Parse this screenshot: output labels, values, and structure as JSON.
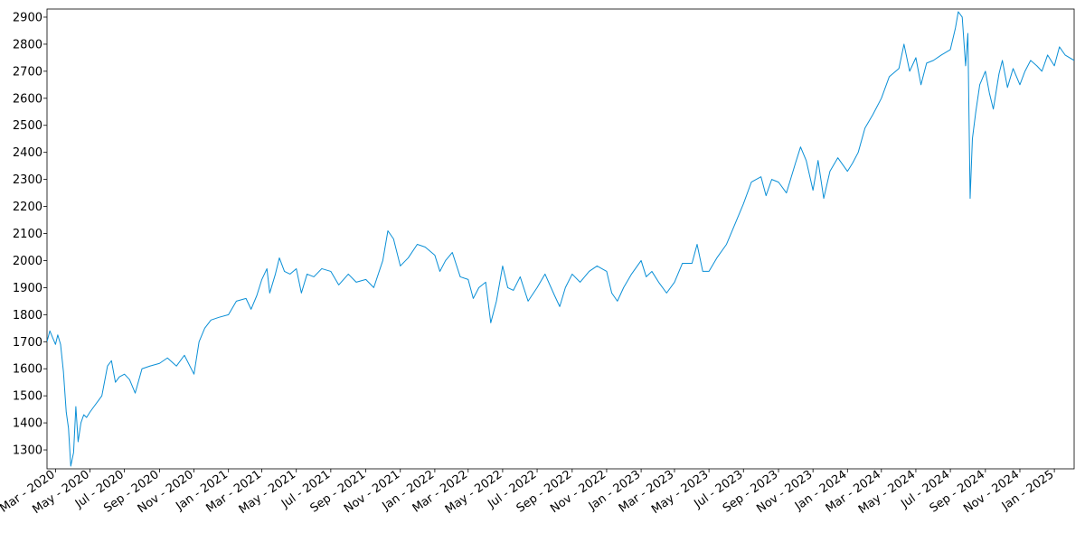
{
  "chart_data": {
    "type": "line",
    "title": "",
    "xlabel": "",
    "ylabel": "",
    "grid": false,
    "legend": "none",
    "line_color": "#0a8fd6",
    "xlim": [
      "2020-02-15",
      "2025-02-05"
    ],
    "ylim": [
      1230,
      2930
    ],
    "yticks": [
      1300,
      1400,
      1500,
      1600,
      1700,
      1800,
      1900,
      2000,
      2100,
      2200,
      2300,
      2400,
      2500,
      2600,
      2700,
      2800,
      2900
    ],
    "xticks": [
      {
        "date": "2020-03-01",
        "label": "Mar - 2020"
      },
      {
        "date": "2020-05-01",
        "label": "May - 2020"
      },
      {
        "date": "2020-07-01",
        "label": "Jul - 2020"
      },
      {
        "date": "2020-09-01",
        "label": "Sep - 2020"
      },
      {
        "date": "2020-11-01",
        "label": "Nov - 2020"
      },
      {
        "date": "2021-01-01",
        "label": "Jan - 2021"
      },
      {
        "date": "2021-03-01",
        "label": "Mar - 2021"
      },
      {
        "date": "2021-05-01",
        "label": "May - 2021"
      },
      {
        "date": "2021-07-01",
        "label": "Jul - 2021"
      },
      {
        "date": "2021-09-01",
        "label": "Sep - 2021"
      },
      {
        "date": "2021-11-01",
        "label": "Nov - 2021"
      },
      {
        "date": "2022-01-01",
        "label": "Jan - 2022"
      },
      {
        "date": "2022-03-01",
        "label": "Mar - 2022"
      },
      {
        "date": "2022-05-01",
        "label": "May - 2022"
      },
      {
        "date": "2022-07-01",
        "label": "Jul - 2022"
      },
      {
        "date": "2022-09-01",
        "label": "Sep - 2022"
      },
      {
        "date": "2022-11-01",
        "label": "Nov - 2022"
      },
      {
        "date": "2023-01-01",
        "label": "Jan - 2023"
      },
      {
        "date": "2023-03-01",
        "label": "Mar - 2023"
      },
      {
        "date": "2023-05-01",
        "label": "May - 2023"
      },
      {
        "date": "2023-07-01",
        "label": "Jul - 2023"
      },
      {
        "date": "2023-09-01",
        "label": "Sep - 2023"
      },
      {
        "date": "2023-11-01",
        "label": "Nov - 2023"
      },
      {
        "date": "2024-01-01",
        "label": "Jan - 2024"
      },
      {
        "date": "2024-03-01",
        "label": "Mar - 2024"
      },
      {
        "date": "2024-05-01",
        "label": "May - 2024"
      },
      {
        "date": "2024-07-01",
        "label": "Jul - 2024"
      },
      {
        "date": "2024-09-01",
        "label": "Sep - 2024"
      },
      {
        "date": "2024-11-01",
        "label": "Nov - 2024"
      },
      {
        "date": "2025-01-01",
        "label": "Jan - 2025"
      }
    ],
    "series": [
      {
        "points": [
          [
            "2020-02-15",
            1700
          ],
          [
            "2020-02-20",
            1740
          ],
          [
            "2020-02-25",
            1715
          ],
          [
            "2020-03-01",
            1690
          ],
          [
            "2020-03-05",
            1725
          ],
          [
            "2020-03-10",
            1690
          ],
          [
            "2020-03-15",
            1590
          ],
          [
            "2020-03-20",
            1440
          ],
          [
            "2020-03-24",
            1380
          ],
          [
            "2020-03-28",
            1240
          ],
          [
            "2020-04-02",
            1290
          ],
          [
            "2020-04-06",
            1460
          ],
          [
            "2020-04-10",
            1330
          ],
          [
            "2020-04-15",
            1400
          ],
          [
            "2020-04-20",
            1430
          ],
          [
            "2020-04-25",
            1420
          ],
          [
            "2020-05-01",
            1440
          ],
          [
            "2020-05-08",
            1460
          ],
          [
            "2020-05-15",
            1480
          ],
          [
            "2020-05-22",
            1500
          ],
          [
            "2020-06-01",
            1610
          ],
          [
            "2020-06-08",
            1630
          ],
          [
            "2020-06-15",
            1550
          ],
          [
            "2020-06-22",
            1570
          ],
          [
            "2020-07-01",
            1580
          ],
          [
            "2020-07-10",
            1560
          ],
          [
            "2020-07-20",
            1510
          ],
          [
            "2020-08-01",
            1600
          ],
          [
            "2020-08-15",
            1610
          ],
          [
            "2020-09-01",
            1620
          ],
          [
            "2020-09-15",
            1640
          ],
          [
            "2020-10-01",
            1610
          ],
          [
            "2020-10-15",
            1650
          ],
          [
            "2020-11-01",
            1580
          ],
          [
            "2020-11-10",
            1700
          ],
          [
            "2020-11-20",
            1750
          ],
          [
            "2020-12-01",
            1780
          ],
          [
            "2020-12-15",
            1790
          ],
          [
            "2021-01-01",
            1800
          ],
          [
            "2021-01-15",
            1850
          ],
          [
            "2021-02-01",
            1860
          ],
          [
            "2021-02-10",
            1820
          ],
          [
            "2021-02-20",
            1870
          ],
          [
            "2021-03-01",
            1930
          ],
          [
            "2021-03-10",
            1970
          ],
          [
            "2021-03-15",
            1880
          ],
          [
            "2021-03-25",
            1950
          ],
          [
            "2021-04-01",
            2010
          ],
          [
            "2021-04-10",
            1960
          ],
          [
            "2021-04-20",
            1950
          ],
          [
            "2021-05-01",
            1970
          ],
          [
            "2021-05-10",
            1880
          ],
          [
            "2021-05-20",
            1950
          ],
          [
            "2021-06-01",
            1940
          ],
          [
            "2021-06-15",
            1970
          ],
          [
            "2021-07-01",
            1960
          ],
          [
            "2021-07-15",
            1910
          ],
          [
            "2021-08-01",
            1950
          ],
          [
            "2021-08-15",
            1920
          ],
          [
            "2021-09-01",
            1930
          ],
          [
            "2021-09-15",
            1900
          ],
          [
            "2021-10-01",
            2000
          ],
          [
            "2021-10-10",
            2110
          ],
          [
            "2021-10-20",
            2080
          ],
          [
            "2021-11-01",
            1980
          ],
          [
            "2021-11-15",
            2010
          ],
          [
            "2021-12-01",
            2060
          ],
          [
            "2021-12-15",
            2050
          ],
          [
            "2022-01-01",
            2020
          ],
          [
            "2022-01-10",
            1960
          ],
          [
            "2022-01-20",
            2000
          ],
          [
            "2022-02-01",
            2030
          ],
          [
            "2022-02-15",
            1940
          ],
          [
            "2022-03-01",
            1930
          ],
          [
            "2022-03-10",
            1860
          ],
          [
            "2022-03-20",
            1900
          ],
          [
            "2022-04-01",
            1920
          ],
          [
            "2022-04-10",
            1770
          ],
          [
            "2022-04-20",
            1850
          ],
          [
            "2022-05-01",
            1980
          ],
          [
            "2022-05-10",
            1900
          ],
          [
            "2022-05-20",
            1890
          ],
          [
            "2022-06-01",
            1940
          ],
          [
            "2022-06-15",
            1850
          ],
          [
            "2022-07-01",
            1900
          ],
          [
            "2022-07-15",
            1950
          ],
          [
            "2022-08-01",
            1870
          ],
          [
            "2022-08-10",
            1830
          ],
          [
            "2022-08-20",
            1900
          ],
          [
            "2022-09-01",
            1950
          ],
          [
            "2022-09-15",
            1920
          ],
          [
            "2022-10-01",
            1960
          ],
          [
            "2022-10-15",
            1980
          ],
          [
            "2022-11-01",
            1960
          ],
          [
            "2022-11-10",
            1880
          ],
          [
            "2022-11-20",
            1850
          ],
          [
            "2022-12-01",
            1900
          ],
          [
            "2022-12-15",
            1950
          ],
          [
            "2023-01-01",
            2000
          ],
          [
            "2023-01-10",
            1940
          ],
          [
            "2023-01-20",
            1960
          ],
          [
            "2023-02-01",
            1920
          ],
          [
            "2023-02-15",
            1880
          ],
          [
            "2023-03-01",
            1920
          ],
          [
            "2023-03-15",
            1990
          ],
          [
            "2023-04-01",
            1990
          ],
          [
            "2023-04-10",
            2060
          ],
          [
            "2023-04-20",
            1960
          ],
          [
            "2023-05-01",
            1960
          ],
          [
            "2023-05-15",
            2010
          ],
          [
            "2023-06-01",
            2060
          ],
          [
            "2023-06-15",
            2130
          ],
          [
            "2023-07-01",
            2210
          ],
          [
            "2023-07-15",
            2290
          ],
          [
            "2023-08-01",
            2310
          ],
          [
            "2023-08-10",
            2240
          ],
          [
            "2023-08-20",
            2300
          ],
          [
            "2023-09-01",
            2290
          ],
          [
            "2023-09-15",
            2250
          ],
          [
            "2023-10-01",
            2360
          ],
          [
            "2023-10-10",
            2420
          ],
          [
            "2023-10-20",
            2370
          ],
          [
            "2023-11-01",
            2260
          ],
          [
            "2023-11-10",
            2370
          ],
          [
            "2023-11-20",
            2230
          ],
          [
            "2023-12-01",
            2330
          ],
          [
            "2023-12-15",
            2380
          ],
          [
            "2024-01-01",
            2330
          ],
          [
            "2024-01-10",
            2360
          ],
          [
            "2024-01-20",
            2400
          ],
          [
            "2024-02-01",
            2490
          ],
          [
            "2024-02-15",
            2540
          ],
          [
            "2024-03-01",
            2600
          ],
          [
            "2024-03-15",
            2680
          ],
          [
            "2024-04-01",
            2710
          ],
          [
            "2024-04-10",
            2800
          ],
          [
            "2024-04-20",
            2700
          ],
          [
            "2024-05-01",
            2750
          ],
          [
            "2024-05-10",
            2650
          ],
          [
            "2024-05-20",
            2730
          ],
          [
            "2024-06-01",
            2740
          ],
          [
            "2024-06-15",
            2760
          ],
          [
            "2024-07-01",
            2780
          ],
          [
            "2024-07-10",
            2860
          ],
          [
            "2024-07-15",
            2920
          ],
          [
            "2024-07-22",
            2900
          ],
          [
            "2024-07-28",
            2720
          ],
          [
            "2024-08-01",
            2840
          ],
          [
            "2024-08-05",
            2230
          ],
          [
            "2024-08-09",
            2450
          ],
          [
            "2024-08-15",
            2550
          ],
          [
            "2024-08-22",
            2650
          ],
          [
            "2024-09-01",
            2700
          ],
          [
            "2024-09-08",
            2620
          ],
          [
            "2024-09-15",
            2560
          ],
          [
            "2024-09-25",
            2690
          ],
          [
            "2024-10-01",
            2740
          ],
          [
            "2024-10-10",
            2640
          ],
          [
            "2024-10-20",
            2710
          ],
          [
            "2024-11-01",
            2650
          ],
          [
            "2024-11-10",
            2700
          ],
          [
            "2024-11-20",
            2740
          ],
          [
            "2024-12-01",
            2720
          ],
          [
            "2024-12-10",
            2700
          ],
          [
            "2024-12-20",
            2760
          ],
          [
            "2025-01-01",
            2720
          ],
          [
            "2025-01-10",
            2790
          ],
          [
            "2025-01-20",
            2760
          ],
          [
            "2025-02-05",
            2740
          ]
        ]
      }
    ]
  }
}
